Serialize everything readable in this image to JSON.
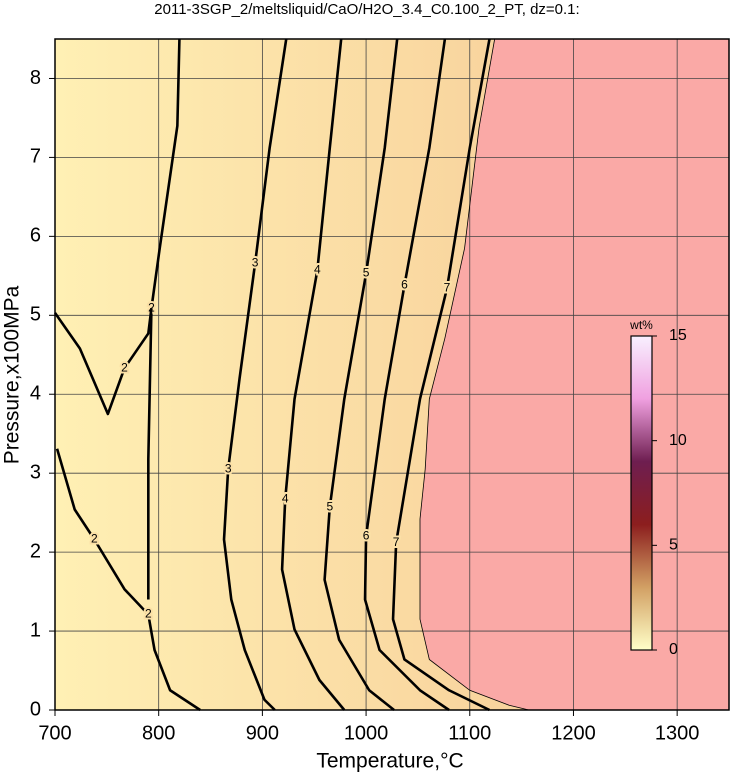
{
  "chart_data": {
    "type": "contour",
    "title": "2011-3SGP_2/meltsliquid/CaO/H2O_3.4_C0.100_2_PT, dz=0.1:",
    "xlabel": "Temperature,°C",
    "ylabel": "Pressure,x100MPa",
    "xlim": [
      700,
      1350
    ],
    "ylim": [
      0,
      8.5
    ],
    "xticks": [
      700,
      800,
      900,
      1000,
      1100,
      1200,
      1300
    ],
    "yticks": [
      0,
      1,
      2,
      3,
      4,
      5,
      6,
      7,
      8
    ],
    "grid": true,
    "fill_colors": [
      "#fff0b4",
      "#f8d29c"
    ],
    "outside_color": "#faa9a6",
    "line_color": "#000000",
    "boundary": {
      "x": [
        1124,
        1109,
        1095,
        1076,
        1061,
        1057,
        1052,
        1052,
        1061,
        1100,
        1138,
        1157
      ],
      "y": [
        8.5,
        7.38,
        5.85,
        4.71,
        3.94,
        3.05,
        2.42,
        1.15,
        0.64,
        0.25,
        0.06,
        0
      ]
    },
    "contours": [
      {
        "level": 2,
        "x": [
          820,
          818,
          801,
          793,
          790,
          790
        ],
        "y": [
          8.5,
          7.4,
          5.85,
          5.09,
          3.18,
          1.4
        ]
      },
      {
        "level": 2,
        "x": [
          700,
          724,
          751,
          767,
          790,
          793
        ],
        "y": [
          5.03,
          4.58,
          3.75,
          4.33,
          4.77,
          5.09
        ]
      },
      {
        "level": 2,
        "x": [
          702,
          719,
          738,
          767,
          790,
          796,
          811,
          840
        ],
        "y": [
          3.31,
          2.54,
          2.16,
          1.53,
          1.21,
          0.76,
          0.25,
          0
        ]
      },
      {
        "level": 3,
        "x": [
          923,
          907,
          893,
          878,
          867,
          863,
          870,
          883,
          902,
          912
        ],
        "y": [
          8.5,
          7.12,
          5.66,
          4.2,
          3.05,
          2.16,
          1.4,
          0.76,
          0.13,
          0
        ]
      },
      {
        "level": 4,
        "x": [
          976,
          965,
          953,
          931,
          922,
          919,
          931,
          955,
          979
        ],
        "y": [
          8.5,
          7.12,
          5.57,
          3.94,
          2.67,
          1.78,
          1.02,
          0.38,
          0
        ]
      },
      {
        "level": 5,
        "x": [
          1030,
          1018,
          1000,
          979,
          965,
          960,
          974,
          1003,
          1027
        ],
        "y": [
          8.5,
          7.12,
          5.53,
          3.94,
          2.57,
          1.65,
          0.89,
          0.25,
          0
        ]
      },
      {
        "level": 6,
        "x": [
          1076,
          1061,
          1037,
          1018,
          1000,
          999,
          1013,
          1052,
          1080
        ],
        "y": [
          8.5,
          7.12,
          5.38,
          3.94,
          2.2,
          1.4,
          0.76,
          0.25,
          0
        ]
      },
      {
        "level": 7,
        "x": [
          1119,
          1100,
          1078,
          1052,
          1029,
          1026,
          1037,
          1080,
          1119
        ],
        "y": [
          8.5,
          7.12,
          5.34,
          3.94,
          2.12,
          1.15,
          0.64,
          0.25,
          0
        ]
      }
    ],
    "colorbar": {
      "label": "wt%",
      "lim": [
        0,
        15
      ],
      "ticks": [
        0,
        5,
        10,
        15
      ],
      "colors": [
        "#ffffc8",
        "#d2a064",
        "#8c1e1e",
        "#6e1e50",
        "#f0a0e0",
        "#f8f0ff"
      ]
    }
  }
}
